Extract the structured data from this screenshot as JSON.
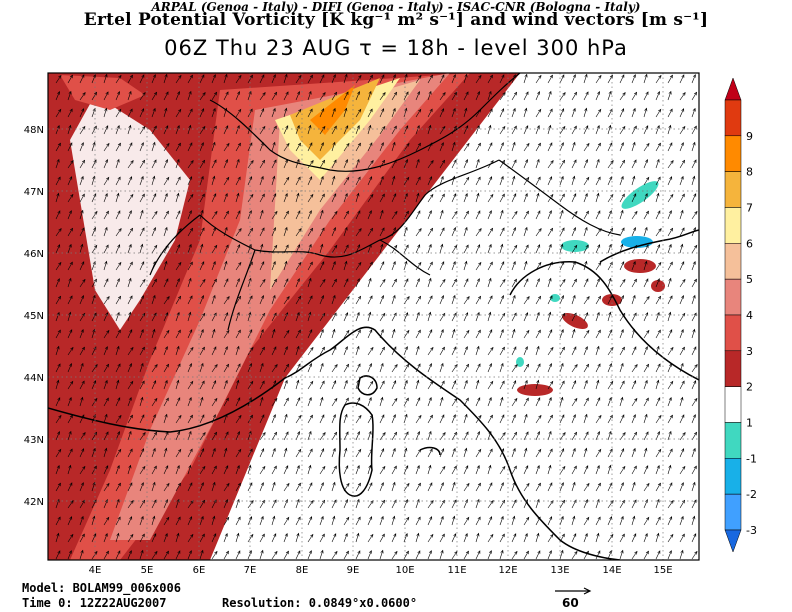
{
  "header": {
    "institutions": "ARPAL (Genoa - Italy)  -  DIFI (Genoa - Italy)  -  ISAC-CNR (Bologna - Italy)",
    "title": "Ertel Potential Vorticity [K kg⁻¹ m² s⁻¹] and wind vectors [m s⁻¹]",
    "subtitle": "06Z Thu 23 AUG  τ = 18h  -  level 300 hPa"
  },
  "map": {
    "lon_labels": [
      "4E",
      "5E",
      "6E",
      "7E",
      "8E",
      "9E",
      "10E",
      "11E",
      "12E",
      "13E",
      "14E",
      "15E"
    ],
    "lat_labels": [
      "48N",
      "47N",
      "46N",
      "45N",
      "44N",
      "43N",
      "42N"
    ]
  },
  "colorbar": {
    "labels": [
      "9",
      "8",
      "7",
      "6",
      "5",
      "4",
      "3",
      "2",
      "1",
      "-1",
      "-2",
      "-3"
    ],
    "colors": [
      "#c00018",
      "#e03a10",
      "#ff8a00",
      "#f5b43c",
      "#fff0a0",
      "#f5c09a",
      "#e8857c",
      "#e05048",
      "#b82828",
      "#ffffff",
      "#40d8c0",
      "#18b0e8",
      "#40a0ff",
      "#1868e0"
    ]
  },
  "footer": {
    "model": "Model: BOLAM99_006x006",
    "time": "Time 0: 12Z22AUG2007",
    "resolution": "Resolution: 0.0849°x0.0600°",
    "ref_vector_label": "60"
  }
}
